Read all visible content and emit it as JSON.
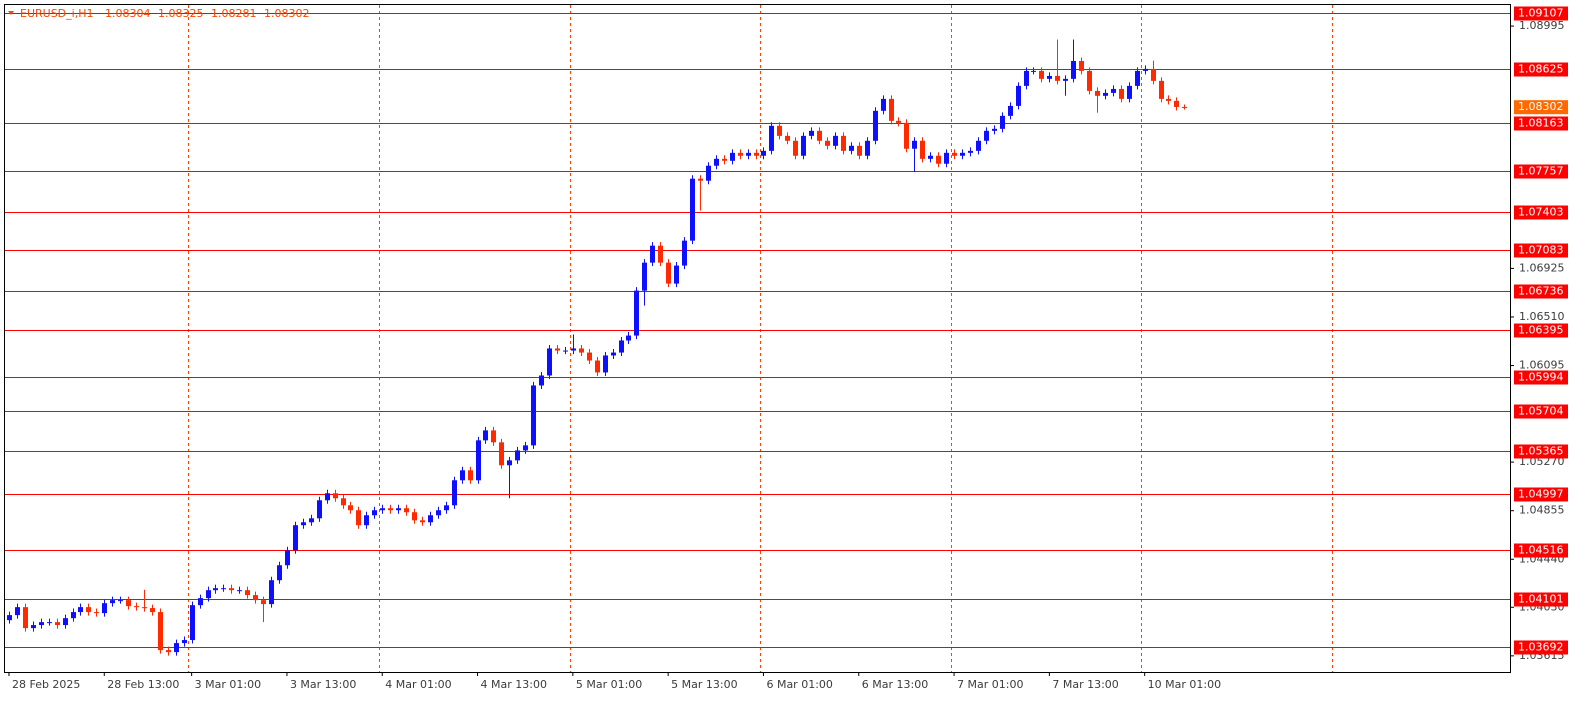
{
  "chart_data": {
    "type": "candlestick",
    "symbol": "EURUSD_i,H1",
    "bull_color": "#0f0fff",
    "bear_color": "#ff2a00",
    "level_color": "#ff0000",
    "grid_color": "#ff4500",
    "current_color": "#ff6a00",
    "xlim": [
      -0.5,
      189
    ],
    "ylim": [
      1.03477,
      1.09175
    ],
    "xticks": [
      {
        "value": 0,
        "label": "28 Feb 2025"
      },
      {
        "value": 12,
        "label": "28 Feb 13:00"
      },
      {
        "value": 23,
        "label": "3 Mar 01:00"
      },
      {
        "value": 35,
        "label": "3 Mar 13:00"
      },
      {
        "value": 47,
        "label": "4 Mar 01:00"
      },
      {
        "value": 59,
        "label": "4 Mar 13:00"
      },
      {
        "value": 71,
        "label": "5 Mar 01:00"
      },
      {
        "value": 83,
        "label": "5 Mar 13:00"
      },
      {
        "value": 95,
        "label": "6 Mar 01:00"
      },
      {
        "value": 107,
        "label": "6 Mar 13:00"
      },
      {
        "value": 119,
        "label": "7 Mar 01:00"
      },
      {
        "value": 131,
        "label": "7 Mar 13:00"
      },
      {
        "value": 143,
        "label": "10 Mar 01:00"
      }
    ],
    "xgrid": [
      22.6,
      46.6,
      70.6,
      94.6,
      118.6,
      142.6,
      166.6
    ],
    "yticks": [
      1.08995,
      1.06925,
      {
        "value": 1.0651,
        "label": "1.06510"
      },
      1.06095,
      {
        "value": 1.0527,
        "label": "1.05270"
      },
      1.04855,
      {
        "value": 1.0444,
        "label": "1.04440"
      },
      {
        "value": 1.0403,
        "label": "1.04030"
      },
      1.03615
    ],
    "levels": [
      1.09107,
      1.08625,
      1.08163,
      1.07757,
      1.07403,
      1.07083,
      1.06736,
      1.06395,
      1.05994,
      1.05704,
      1.05365,
      1.04997,
      1.04516,
      1.04101,
      1.03692
    ],
    "open": [
      1.0392,
      1.03963,
      1.04031,
      1.03852,
      1.03878,
      1.03903,
      1.03903,
      1.03878,
      1.03937,
      1.03989,
      1.04031,
      1.03989,
      1.0398,
      1.04065,
      1.04091,
      1.04091,
      1.0404,
      1.04031,
      1.04023,
      1.03989,
      1.03664,
      1.03647,
      1.03724,
      1.0375,
      1.04048,
      1.04108,
      1.04176,
      1.04193,
      1.04193,
      1.04176,
      1.04176,
      1.04134,
      1.04091,
      1.04057,
      1.04261,
      1.04389,
      1.04517,
      1.04731,
      1.04756,
      1.0479,
      1.04944,
      1.05004,
      1.04961,
      1.04901,
      1.04859,
      1.04731,
      1.04816,
      1.04859,
      1.04876,
      1.04859,
      1.04876,
      1.04842,
      1.04773,
      1.04756,
      1.04816,
      1.04859,
      1.04901,
      1.05115,
      1.052,
      1.05115,
      1.05456,
      1.05541,
      1.05439,
      1.05243,
      1.05285,
      1.0537,
      1.05413,
      1.05925,
      1.0601,
      1.06241,
      1.06223,
      1.06223,
      1.06241,
      1.06206,
      1.06138,
      1.06036,
      1.06181,
      1.06206,
      1.06309,
      1.06351,
      1.06735,
      1.06974,
      1.07119,
      1.06974,
      1.06795,
      1.06949,
      1.07162,
      1.07691,
      1.07674,
      1.07802,
      1.07861,
      1.07844,
      1.07912,
      1.07887,
      1.07912,
      1.07887,
      1.07929,
      1.08143,
      1.08057,
      1.08015,
      1.07887,
      1.08057,
      1.081,
      1.08015,
      1.07972,
      1.08057,
      1.07929,
      1.07972,
      1.07887,
      1.08015,
      1.08271,
      1.08373,
      1.08185,
      1.08168,
      1.07947,
      1.08015,
      1.07861,
      1.07887,
      1.07819,
      1.07912,
      1.07887,
      1.07912,
      1.07929,
      1.08015,
      1.081,
      1.08117,
      1.08228,
      1.08313,
      1.08484,
      1.08612,
      1.08612,
      1.08544,
      1.08569,
      1.08527,
      1.08544,
      1.08697,
      1.08612,
      1.08441,
      1.08399,
      1.08424,
      1.08458,
      1.08373,
      1.08484,
      1.08612,
      1.08629,
      1.08527,
      1.08373,
      1.08356,
      1.08304
    ],
    "high": [
      1.03993,
      1.04061,
      1.04061,
      1.03908,
      1.03933,
      1.03933,
      1.03933,
      1.03967,
      1.04019,
      1.04061,
      1.04061,
      1.04019,
      1.04095,
      1.04121,
      1.04121,
      1.04121,
      1.0407,
      1.0418,
      1.04053,
      1.04019,
      1.03694,
      1.03754,
      1.0378,
      1.04078,
      1.04138,
      1.04206,
      1.04223,
      1.04223,
      1.04223,
      1.04206,
      1.04206,
      1.04164,
      1.04121,
      1.04291,
      1.04419,
      1.04547,
      1.04761,
      1.04786,
      1.0482,
      1.04974,
      1.05034,
      1.05034,
      1.04991,
      1.04931,
      1.04889,
      1.04846,
      1.04889,
      1.04906,
      1.04906,
      1.04906,
      1.04906,
      1.04872,
      1.04803,
      1.04846,
      1.04889,
      1.04931,
      1.05145,
      1.0523,
      1.0523,
      1.05486,
      1.05571,
      1.05571,
      1.05469,
      1.05315,
      1.054,
      1.05443,
      1.05955,
      1.0604,
      1.06271,
      1.06271,
      1.06253,
      1.0636,
      1.06271,
      1.06236,
      1.06168,
      1.06211,
      1.06236,
      1.06339,
      1.06381,
      1.06765,
      1.07004,
      1.07149,
      1.07149,
      1.07004,
      1.06979,
      1.07192,
      1.07721,
      1.07721,
      1.07832,
      1.07891,
      1.07891,
      1.07942,
      1.07942,
      1.07942,
      1.07942,
      1.07959,
      1.08173,
      1.08173,
      1.08087,
      1.08045,
      1.08087,
      1.0813,
      1.0813,
      1.08045,
      1.08087,
      1.08087,
      1.08002,
      1.08002,
      1.08045,
      1.08301,
      1.08403,
      1.08403,
      1.08215,
      1.08198,
      1.08045,
      1.08045,
      1.07917,
      1.07917,
      1.07942,
      1.07942,
      1.07942,
      1.07959,
      1.08045,
      1.0813,
      1.08147,
      1.08258,
      1.08343,
      1.08514,
      1.08642,
      1.08642,
      1.08642,
      1.08599,
      1.0888,
      1.08574,
      1.0888,
      1.08727,
      1.08642,
      1.08471,
      1.08454,
      1.08488,
      1.08488,
      1.08514,
      1.08642,
      1.08659,
      1.087,
      1.08557,
      1.08403,
      1.08386,
      1.08325
    ],
    "low": [
      1.0389,
      1.03933,
      1.03822,
      1.03822,
      1.03848,
      1.03873,
      1.03848,
      1.03848,
      1.03907,
      1.03959,
      1.03959,
      1.0395,
      1.0395,
      1.04035,
      1.04061,
      1.0401,
      1.04001,
      1.03993,
      1.03959,
      1.03634,
      1.03617,
      1.03617,
      1.03694,
      1.0372,
      1.04018,
      1.04078,
      1.04146,
      1.04163,
      1.04146,
      1.04146,
      1.04104,
      1.04061,
      1.03903,
      1.04027,
      1.04231,
      1.04359,
      1.04487,
      1.04701,
      1.04726,
      1.0476,
      1.04914,
      1.04931,
      1.04871,
      1.04829,
      1.04701,
      1.04701,
      1.04786,
      1.04829,
      1.04829,
      1.04829,
      1.04812,
      1.04743,
      1.04726,
      1.04726,
      1.04786,
      1.04829,
      1.04871,
      1.05085,
      1.05085,
      1.05085,
      1.05426,
      1.05409,
      1.05213,
      1.04961,
      1.05255,
      1.0534,
      1.05383,
      1.05895,
      1.0598,
      1.06193,
      1.06193,
      1.06193,
      1.06176,
      1.06108,
      1.06006,
      1.06006,
      1.06151,
      1.06176,
      1.06279,
      1.06321,
      1.06607,
      1.06944,
      1.06944,
      1.06765,
      1.06765,
      1.06919,
      1.07132,
      1.07418,
      1.07644,
      1.07772,
      1.07814,
      1.07814,
      1.07857,
      1.07857,
      1.07857,
      1.07857,
      1.07899,
      1.08027,
      1.07985,
      1.07857,
      1.07857,
      1.08027,
      1.07985,
      1.07942,
      1.07942,
      1.07899,
      1.07899,
      1.07857,
      1.07857,
      1.07985,
      1.08241,
      1.08155,
      1.08138,
      1.07917,
      1.07749,
      1.07831,
      1.07831,
      1.07789,
      1.07789,
      1.07857,
      1.07857,
      1.07882,
      1.07899,
      1.07985,
      1.0807,
      1.08087,
      1.08198,
      1.08283,
      1.08454,
      1.08582,
      1.08514,
      1.08514,
      1.08497,
      1.084,
      1.08514,
      1.08582,
      1.08411,
      1.08254,
      1.08369,
      1.08394,
      1.08343,
      1.08343,
      1.08454,
      1.08582,
      1.08497,
      1.08343,
      1.08326,
      1.08274,
      1.08281
    ],
    "close": [
      1.03963,
      1.04031,
      1.03852,
      1.03878,
      1.03903,
      1.03903,
      1.03878,
      1.03937,
      1.03989,
      1.04031,
      1.03989,
      1.0398,
      1.04065,
      1.04091,
      1.04091,
      1.0404,
      1.04031,
      1.04023,
      1.03989,
      1.03664,
      1.03647,
      1.03724,
      1.0375,
      1.04048,
      1.04108,
      1.04176,
      1.04193,
      1.04193,
      1.04176,
      1.04176,
      1.04134,
      1.04091,
      1.04057,
      1.04261,
      1.04389,
      1.04517,
      1.04731,
      1.04756,
      1.0479,
      1.04944,
      1.05004,
      1.04961,
      1.04901,
      1.04859,
      1.04731,
      1.04816,
      1.04859,
      1.04876,
      1.04859,
      1.04876,
      1.04842,
      1.04773,
      1.04756,
      1.04816,
      1.04859,
      1.04901,
      1.05115,
      1.052,
      1.05115,
      1.05456,
      1.05541,
      1.05439,
      1.05243,
      1.05285,
      1.0537,
      1.05413,
      1.05925,
      1.0601,
      1.06241,
      1.06223,
      1.06223,
      1.06241,
      1.06206,
      1.06138,
      1.06036,
      1.06181,
      1.06206,
      1.06309,
      1.06351,
      1.06735,
      1.06974,
      1.07119,
      1.06974,
      1.06795,
      1.06949,
      1.07162,
      1.07691,
      1.07674,
      1.07802,
      1.07861,
      1.07844,
      1.07912,
      1.07887,
      1.07912,
      1.07887,
      1.07929,
      1.08143,
      1.08057,
      1.08015,
      1.07887,
      1.08057,
      1.081,
      1.08015,
      1.07972,
      1.08057,
      1.07929,
      1.07972,
      1.07887,
      1.08015,
      1.08271,
      1.08373,
      1.08185,
      1.08168,
      1.07947,
      1.08015,
      1.07861,
      1.07887,
      1.07819,
      1.07912,
      1.07887,
      1.07912,
      1.07929,
      1.08015,
      1.081,
      1.08117,
      1.08228,
      1.08313,
      1.08484,
      1.08612,
      1.08612,
      1.08544,
      1.08569,
      1.08527,
      1.08544,
      1.08697,
      1.08612,
      1.08441,
      1.08399,
      1.08424,
      1.08458,
      1.08373,
      1.08484,
      1.08612,
      1.08629,
      1.08527,
      1.08373,
      1.08356,
      1.08304,
      1.08302
    ]
  }
}
